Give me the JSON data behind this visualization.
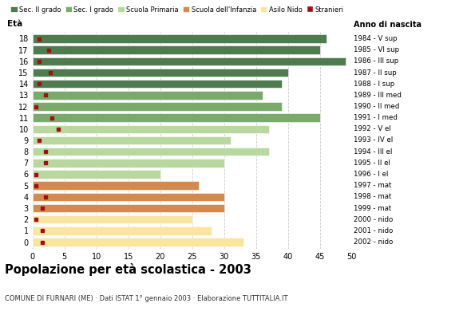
{
  "ages": [
    18,
    17,
    16,
    15,
    14,
    13,
    12,
    11,
    10,
    9,
    8,
    7,
    6,
    5,
    4,
    3,
    2,
    1,
    0
  ],
  "years": [
    "1984 - V sup",
    "1985 - VI sup",
    "1986 - III sup",
    "1987 - II sup",
    "1988 - I sup",
    "1989 - III med",
    "1990 - II med",
    "1991 - I med",
    "1992 - V el",
    "1993 - IV el",
    "1994 - III el",
    "1995 - II el",
    "1996 - I el",
    "1997 - mat",
    "1998 - mat",
    "1999 - mat",
    "2000 - nido",
    "2001 - nido",
    "2002 - nido"
  ],
  "bar_values": [
    46,
    45,
    49,
    40,
    39,
    36,
    39,
    45,
    37,
    31,
    37,
    30,
    20,
    26,
    30,
    30,
    25,
    28,
    33
  ],
  "stranieri": [
    1.0,
    2.5,
    1.0,
    2.8,
    1.0,
    2.0,
    0.5,
    3.0,
    4.0,
    1.0,
    2.0,
    2.0,
    0.5,
    0.5,
    2.0,
    1.5,
    0.5,
    1.5,
    1.5
  ],
  "bar_colors": [
    "#4e7c4e",
    "#4e7c4e",
    "#4e7c4e",
    "#4e7c4e",
    "#4e7c4e",
    "#7aaa6a",
    "#7aaa6a",
    "#7aaa6a",
    "#b8d8a0",
    "#b8d8a0",
    "#b8d8a0",
    "#b8d8a0",
    "#b8d8a0",
    "#d4894e",
    "#d4894e",
    "#d4894e",
    "#f9e4a0",
    "#f9e4a0",
    "#f9e4a0"
  ],
  "stranieri_color": "#a01010",
  "title": "Popolazione per età scolastica - 2003",
  "subtitle": "COMUNE DI FURNARI (ME) · Dati ISTAT 1° gennaio 2003 · Elaborazione TUTTITALIA.IT",
  "xlim": [
    0,
    50
  ],
  "xticks": [
    0,
    5,
    10,
    15,
    20,
    25,
    30,
    35,
    40,
    45,
    50
  ],
  "background_color": "#ffffff",
  "grid_color": "#cccccc",
  "legend_labels": [
    "Sec. II grado",
    "Sec. I grado",
    "Scuola Primaria",
    "Scuola dell'Infanzia",
    "Asilo Nido",
    "Stranieri"
  ],
  "legend_colors": [
    "#4e7c4e",
    "#7aaa6a",
    "#b8d8a0",
    "#d4894e",
    "#f9e4a0",
    "#a01010"
  ],
  "bar_height": 0.75,
  "ylim": [
    -0.6,
    18.6
  ]
}
